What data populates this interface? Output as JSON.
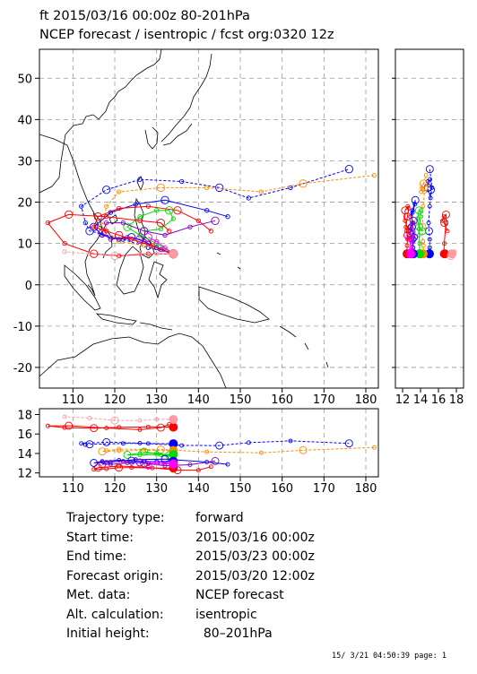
{
  "title": {
    "line1": "ft 2015/03/16 00:00z  80-201hPa",
    "line2": "NCEP forecast / isentropic / fcst org:0320 12z"
  },
  "map": {
    "lon_ticks": [
      "110",
      "120",
      "130",
      "140",
      "150",
      "160",
      "170",
      "180"
    ],
    "lat_ticks": [
      "50",
      "40",
      "30",
      "20",
      "10",
      "0",
      "-10",
      "-20"
    ],
    "lon_range": [
      102,
      183
    ],
    "lat_range": [
      -25,
      57
    ]
  },
  "side_panel": {
    "x_ticks": [
      "12",
      "14",
      "16",
      "18"
    ],
    "x_range": [
      11.2,
      18.8
    ]
  },
  "bottom_panel": {
    "y_ticks": [
      "18",
      "16",
      "14",
      "12"
    ],
    "y_range": [
      11.6,
      18.6
    ]
  },
  "colors": {
    "red": "#ff0000",
    "blue": "#0000ff",
    "orange": "#ff8c00",
    "green": "#00dd00",
    "magenta": "#ff00ff",
    "purple": "#7b00c8",
    "pink": "#ff9aa2"
  },
  "chart_data": {
    "type": "trajectory",
    "series": [
      {
        "color": "blue",
        "style": "dash",
        "start_height": 15.0,
        "points": [
          [
            134,
            7.5
          ],
          [
            128,
            9
          ],
          [
            122,
            11
          ],
          [
            114,
            13
          ],
          [
            113,
            15
          ],
          [
            112,
            19
          ],
          [
            118,
            23
          ],
          [
            126,
            25.5
          ],
          [
            136,
            25
          ],
          [
            145,
            23.5
          ],
          [
            152,
            21
          ],
          [
            162,
            23.5
          ],
          [
            176,
            28
          ]
        ]
      },
      {
        "color": "orange",
        "style": "dash",
        "start_height": 14.3,
        "points": [
          [
            134,
            7.5
          ],
          [
            127,
            9.5
          ],
          [
            121,
            10.5
          ],
          [
            117,
            14
          ],
          [
            118,
            19
          ],
          [
            121,
            22.5
          ],
          [
            131,
            23.5
          ],
          [
            142,
            23.5
          ],
          [
            155,
            22.5
          ],
          [
            165,
            24.5
          ],
          [
            182,
            26.5
          ]
        ]
      },
      {
        "color": "green",
        "style": "solid",
        "start_height": 13.9,
        "points": [
          [
            134,
            7.5
          ],
          [
            130,
            10
          ],
          [
            126,
            12
          ],
          [
            123,
            14
          ],
          [
            126,
            16.5
          ],
          [
            130,
            18
          ],
          [
            133,
            18
          ],
          [
            134,
            16
          ],
          [
            131,
            13.5
          ],
          [
            127,
            13
          ]
        ]
      },
      {
        "color": "blue",
        "style": "solid",
        "start_height": 13.2,
        "points": [
          [
            134,
            7.5
          ],
          [
            130,
            9
          ],
          [
            127,
            10.5
          ],
          [
            124,
            11.5
          ],
          [
            121,
            11
          ],
          [
            117,
            12
          ],
          [
            115,
            14
          ],
          [
            119,
            17.5
          ],
          [
            125,
            19.5
          ],
          [
            132,
            20.5
          ],
          [
            142,
            18
          ],
          [
            147,
            16.5
          ]
        ]
      },
      {
        "color": "purple",
        "style": "solid",
        "start_height": 13.0,
        "points": [
          [
            134,
            7.5
          ],
          [
            131,
            8.5
          ],
          [
            128,
            10
          ],
          [
            126,
            11
          ],
          [
            123,
            11.5
          ],
          [
            119,
            11
          ],
          [
            117,
            12.5
          ],
          [
            118,
            15
          ],
          [
            122,
            15
          ],
          [
            127,
            13
          ],
          [
            132,
            12
          ],
          [
            138,
            14
          ],
          [
            144,
            15.5
          ]
        ]
      },
      {
        "color": "red",
        "style": "solid",
        "start_height": 12.5,
        "points": [
          [
            134,
            7.5
          ],
          [
            129,
            9.5
          ],
          [
            124,
            11
          ],
          [
            121,
            12
          ],
          [
            118,
            13
          ],
          [
            115,
            14
          ],
          [
            116,
            16.5
          ],
          [
            121,
            18.5
          ],
          [
            128,
            19
          ],
          [
            135,
            18
          ],
          [
            140,
            15.5
          ],
          [
            143,
            13
          ]
        ]
      },
      {
        "color": "magenta",
        "style": "solid",
        "start_height": 12.9,
        "points": [
          [
            134,
            7.5
          ],
          [
            132,
            9
          ],
          [
            130,
            10.5
          ],
          [
            128,
            11.5
          ]
        ]
      },
      {
        "color": "red",
        "style": "solid",
        "start_height": 16.7,
        "points": [
          [
            134,
            7.5
          ],
          [
            128,
            7.5
          ],
          [
            121,
            7
          ],
          [
            115,
            7.5
          ],
          [
            108,
            10
          ],
          [
            104,
            15
          ],
          [
            109,
            17
          ],
          [
            118,
            16.5
          ],
          [
            126,
            15.5
          ],
          [
            131,
            15
          ],
          [
            133,
            13
          ]
        ]
      },
      {
        "color": "pink",
        "style": "dash",
        "start_height": 17.5,
        "points": [
          [
            134,
            7.5
          ],
          [
            130,
            7.5
          ],
          [
            126,
            7.5
          ],
          [
            120,
            7
          ],
          [
            114,
            7.5
          ],
          [
            108,
            8
          ]
        ]
      }
    ]
  }
}
